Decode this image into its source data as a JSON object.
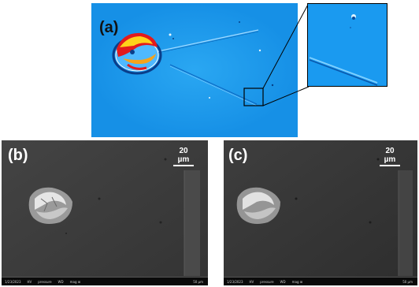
{
  "figure": {
    "panels": [
      {
        "label": "(a)",
        "scale_bar": ""
      },
      {
        "label": "(b)",
        "scale_bar": "20 µm",
        "databar": {
          "date": "1/23/2023",
          "hv": "HV",
          "pressure": "pressure",
          "wd": "WD",
          "mag": "mag ⊞",
          "scale": "50 µm"
        }
      },
      {
        "label": "(c)",
        "scale_bar": "20 µm",
        "databar": {
          "date": "1/23/2023",
          "hv": "HV",
          "pressure": "pressure",
          "wd": "WD",
          "mag": "mag ⊞",
          "scale": "50 µm"
        }
      }
    ]
  },
  "colors": {
    "optical_background": "#1c9ef0",
    "inset_border": "#000000",
    "sem_background": "#3c3c3c",
    "label_dark": "#111111",
    "label_light": "#ffffff"
  }
}
